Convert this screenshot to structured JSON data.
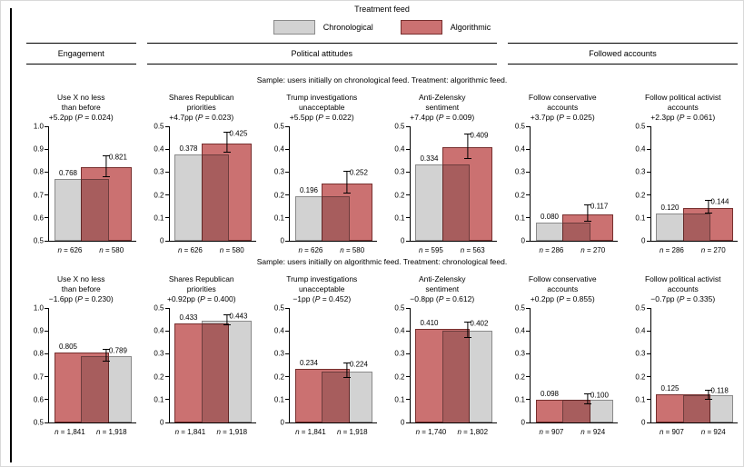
{
  "chart_data": {
    "type": "bar",
    "legend": {
      "title": "Treatment feed",
      "items": [
        {
          "id": "chronological",
          "label": "Chronological",
          "fill": "#d2d2d2",
          "border": "#8a8a8a"
        },
        {
          "id": "algorithmic",
          "label": "Algorithmic",
          "fill": "#cb7171",
          "border": "#772f2e"
        }
      ]
    },
    "sections": [
      {
        "label": "Engagement"
      },
      {
        "label": "Political attitudes"
      },
      {
        "label": "Followed accounts"
      }
    ],
    "rows": [
      {
        "sample": "Sample: users initially on chronological feed. Treatment: algorithmic feed.",
        "bar_order": [
          "chronological",
          "algorithmic"
        ],
        "panels": [
          {
            "title": [
              "Use X no less",
              "than before"
            ],
            "effect": "+5.2pp (P = 0.024)",
            "ylim": [
              0.5,
              1.0
            ],
            "ytick_labels": [
              "0.5",
              "0.6",
              "0.7",
              "0.8",
              "0.9",
              "1.0"
            ],
            "bars": [
              {
                "group": "chronological",
                "value": 0.768,
                "label": "0.768",
                "n": "n = 626"
              },
              {
                "group": "algorithmic",
                "value": 0.821,
                "label": "0.821",
                "n": "n = 580",
                "err": 0.045
              }
            ]
          },
          {
            "title": [
              "Shares Republican",
              "priorities"
            ],
            "effect": "+4.7pp (P = 0.023)",
            "ylim": [
              0,
              0.5
            ],
            "ytick_labels": [
              "0",
              "0.1",
              "0.2",
              "0.3",
              "0.4",
              "0.5"
            ],
            "bars": [
              {
                "group": "chronological",
                "value": 0.378,
                "label": "0.378",
                "n": "n = 626"
              },
              {
                "group": "algorithmic",
                "value": 0.425,
                "label": "0.425",
                "n": "n = 580",
                "err": 0.042
              }
            ]
          },
          {
            "title": [
              "Trump investigations",
              "unacceptable"
            ],
            "effect": "+5.5pp (P = 0.022)",
            "ylim": [
              0,
              0.5
            ],
            "ytick_labels": [
              "0",
              "0.1",
              "0.2",
              "0.3",
              "0.4",
              "0.5"
            ],
            "bars": [
              {
                "group": "chronological",
                "value": 0.196,
                "label": "0.196",
                "n": "n = 626"
              },
              {
                "group": "algorithmic",
                "value": 0.252,
                "label": "0.252",
                "n": "n = 580",
                "err": 0.047
              }
            ]
          },
          {
            "title": [
              "Anti-Zelensky",
              "sentiment"
            ],
            "effect": "+7.4pp (P = 0.009)",
            "ylim": [
              0,
              0.5
            ],
            "ytick_labels": [
              "0",
              "0.1",
              "0.2",
              "0.3",
              "0.4",
              "0.5"
            ],
            "bars": [
              {
                "group": "chronological",
                "value": 0.334,
                "label": "0.334",
                "n": "n = 595"
              },
              {
                "group": "algorithmic",
                "value": 0.409,
                "label": "0.409",
                "n": "n = 563",
                "err": 0.05
              }
            ]
          },
          {
            "title": [
              "Follow conservative",
              "accounts"
            ],
            "effect": "+3.7pp (P = 0.025)",
            "ylim": [
              0,
              0.5
            ],
            "ytick_labels": [
              "0",
              "0.1",
              "0.2",
              "0.3",
              "0.4",
              "0.5"
            ],
            "bars": [
              {
                "group": "chronological",
                "value": 0.08,
                "label": "0.080",
                "n": "n = 286"
              },
              {
                "group": "algorithmic",
                "value": 0.117,
                "label": "0.117",
                "n": "n = 270",
                "err": 0.032
              }
            ]
          },
          {
            "title": [
              "Follow political activist",
              "accounts"
            ],
            "effect": "+2.3pp (P = 0.061)",
            "ylim": [
              0,
              0.5
            ],
            "ytick_labels": [
              "0",
              "0.1",
              "0.2",
              "0.3",
              "0.4",
              "0.5"
            ],
            "bars": [
              {
                "group": "chronological",
                "value": 0.12,
                "label": "0.120",
                "n": "n = 286"
              },
              {
                "group": "algorithmic",
                "value": 0.144,
                "label": "0.144",
                "n": "n = 270",
                "err": 0.026
              }
            ]
          }
        ]
      },
      {
        "sample": "Sample: users initially on algorithmic feed. Treatment: chronological feed.",
        "bar_order": [
          "algorithmic",
          "chronological"
        ],
        "panels": [
          {
            "title": [
              "Use X no less",
              "than before"
            ],
            "effect": "−1.6pp (P = 0.230)",
            "ylim": [
              0.5,
              1.0
            ],
            "ytick_labels": [
              "0.5",
              "0.6",
              "0.7",
              "0.8",
              "0.9",
              "1.0"
            ],
            "bars": [
              {
                "group": "algorithmic",
                "value": 0.805,
                "label": "0.805",
                "n": "n = 1,841"
              },
              {
                "group": "chronological",
                "value": 0.789,
                "label": "0.789",
                "n": "n = 1,918",
                "err": 0.024
              }
            ]
          },
          {
            "title": [
              "Shares Republican",
              "priorities"
            ],
            "effect": "+0.92pp (P = 0.400)",
            "ylim": [
              0,
              0.5
            ],
            "ytick_labels": [
              "0",
              "0.1",
              "0.2",
              "0.3",
              "0.4",
              "0.5"
            ],
            "bars": [
              {
                "group": "algorithmic",
                "value": 0.433,
                "label": "0.433",
                "n": "n = 1,841"
              },
              {
                "group": "chronological",
                "value": 0.443,
                "label": "0.443",
                "n": "n = 1,918",
                "err": 0.02
              }
            ]
          },
          {
            "title": [
              "Trump investigations",
              "unacceptable"
            ],
            "effect": "−1pp (P = 0.452)",
            "ylim": [
              0,
              0.5
            ],
            "ytick_labels": [
              "0",
              "0.1",
              "0.2",
              "0.3",
              "0.4",
              "0.5"
            ],
            "bars": [
              {
                "group": "algorithmic",
                "value": 0.234,
                "label": "0.234",
                "n": "n = 1,841"
              },
              {
                "group": "chronological",
                "value": 0.224,
                "label": "0.224",
                "n": "n = 1,918",
                "err": 0.03
              }
            ]
          },
          {
            "title": [
              "Anti-Zelensky",
              "sentiment"
            ],
            "effect": "−0.8pp (P = 0.612)",
            "ylim": [
              0,
              0.5
            ],
            "ytick_labels": [
              "0",
              "0.1",
              "0.2",
              "0.3",
              "0.4",
              "0.5"
            ],
            "bars": [
              {
                "group": "algorithmic",
                "value": 0.41,
                "label": "0.410",
                "n": "n = 1,740"
              },
              {
                "group": "chronological",
                "value": 0.402,
                "label": "0.402",
                "n": "n = 1,802",
                "err": 0.032
              }
            ]
          },
          {
            "title": [
              "Follow conservative",
              "accounts"
            ],
            "effect": "+0.2pp (P = 0.855)",
            "ylim": [
              0,
              0.5
            ],
            "ytick_labels": [
              "0",
              "0.1",
              "0.2",
              "0.3",
              "0.4",
              "0.5"
            ],
            "bars": [
              {
                "group": "algorithmic",
                "value": 0.098,
                "label": "0.098",
                "n": "n = 907"
              },
              {
                "group": "chronological",
                "value": 0.1,
                "label": "0.100",
                "n": "n = 924",
                "err": 0.02
              }
            ]
          },
          {
            "title": [
              "Follow political activist",
              "accounts"
            ],
            "effect": "−0.7pp (P = 0.335)",
            "ylim": [
              0,
              0.5
            ],
            "ytick_labels": [
              "0",
              "0.1",
              "0.2",
              "0.3",
              "0.4",
              "0.5"
            ],
            "bars": [
              {
                "group": "algorithmic",
                "value": 0.125,
                "label": "0.125",
                "n": "n = 907"
              },
              {
                "group": "chronological",
                "value": 0.118,
                "label": "0.118",
                "n": "n = 924",
                "err": 0.019
              }
            ]
          }
        ]
      }
    ]
  }
}
